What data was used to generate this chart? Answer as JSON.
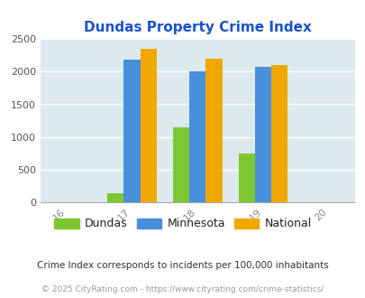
{
  "title": "Dundas Property Crime Index",
  "years": [
    2016,
    2017,
    2018,
    2019,
    2020
  ],
  "data_years": [
    2017,
    2018,
    2019
  ],
  "dundas": [
    150,
    1150,
    750
  ],
  "minnesota": [
    2175,
    2000,
    2075
  ],
  "national": [
    2350,
    2200,
    2100
  ],
  "dundas_color": "#7dc832",
  "minnesota_color": "#4a8fdb",
  "national_color": "#f0a800",
  "bg_color": "#ddeaed",
  "title_color": "#1a52cc",
  "ylim": [
    0,
    2500
  ],
  "yticks": [
    0,
    500,
    1000,
    1500,
    2000,
    2500
  ],
  "legend_labels": [
    "Dundas",
    "Minnesota",
    "National"
  ],
  "footnote1": "Crime Index corresponds to incidents per 100,000 inhabitants",
  "footnote2": "© 2025 CityRating.com - https://www.cityrating.com/crime-statistics/",
  "bar_width": 0.25
}
